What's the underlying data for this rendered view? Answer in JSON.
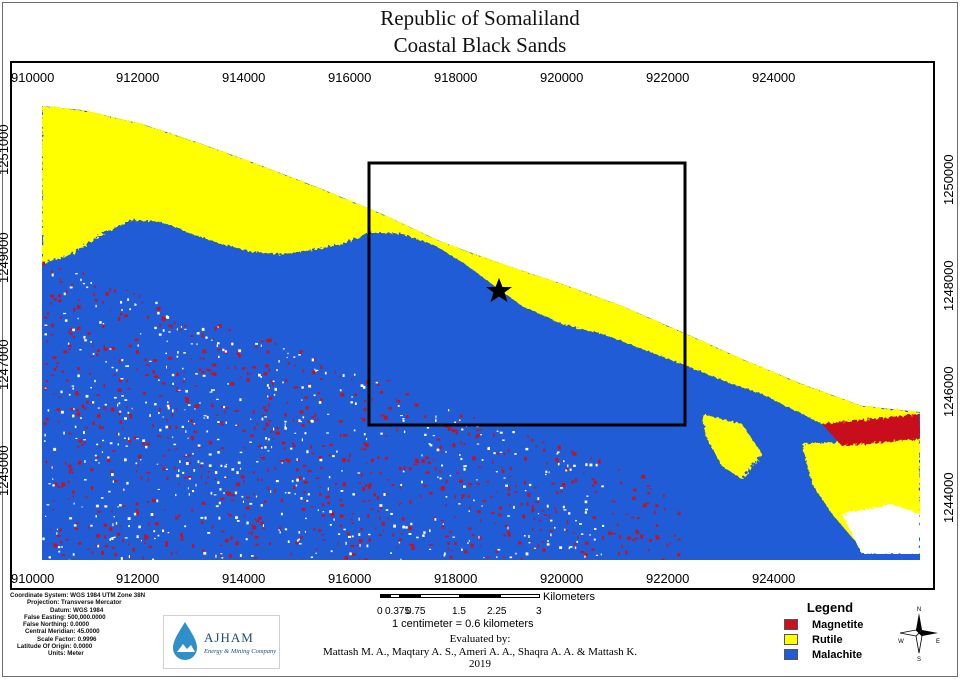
{
  "title": {
    "line1": "Republic of Somaliland",
    "line2": "Coastal Black Sands"
  },
  "map": {
    "x_ticks": [
      "910000",
      "912000",
      "914000",
      "916000",
      "918000",
      "920000",
      "922000",
      "924000"
    ],
    "y_ticks_left": [
      "1251000",
      "1249000",
      "1247000",
      "1245000"
    ],
    "y_ticks_right": [
      "1250000",
      "1248000",
      "1246000",
      "1244000"
    ],
    "study_area_box": "black rectangle",
    "marker": "star"
  },
  "legend": {
    "title": "Legend",
    "items": [
      {
        "label": "Magnetite",
        "color": "#c8101e"
      },
      {
        "label": "Rutile",
        "color": "#ffff00"
      },
      {
        "label": "Malachite",
        "color": "#1f5cd6"
      }
    ]
  },
  "colors": {
    "background": "#ffffff",
    "magnetite": "#c8101e",
    "rutile": "#ffff00",
    "malachite": "#1f5cd6"
  },
  "metadata": {
    "lines": [
      [
        "Coordinate System:",
        "WGS 1984 UTM Zone 38N"
      ],
      [
        "Projection:",
        "Transverse Mercator"
      ],
      [
        "Datum:",
        "WGS 1984"
      ],
      [
        "False Easting:",
        "500,000.0000"
      ],
      [
        "False Northing:",
        "0.0000"
      ],
      [
        "Central Meridian:",
        "45.0000"
      ],
      [
        "Scale Factor:",
        "0.9996"
      ],
      [
        "Latitude Of Origin:",
        "0.0000"
      ],
      [
        "Units:",
        "Meter"
      ]
    ]
  },
  "logo": {
    "name": "AJHAM",
    "subtitle": "Energy & Mining Company"
  },
  "scale_bar": {
    "labels": [
      "0",
      "0.375",
      "0.75",
      "1.5",
      "2.25",
      "3"
    ],
    "unit": "Kilometers",
    "equivalence": "1 centimeter = 0.6 kilometers"
  },
  "credits": {
    "heading": "Evaluated by:",
    "authors": "Mattash M. A., Maqtary A. S., Ameri A. A., Shaqra A. A. &  Mattash K.",
    "year": "2019"
  },
  "north_arrow": {
    "n": "N",
    "s": "S",
    "e": "E",
    "w": "W"
  }
}
